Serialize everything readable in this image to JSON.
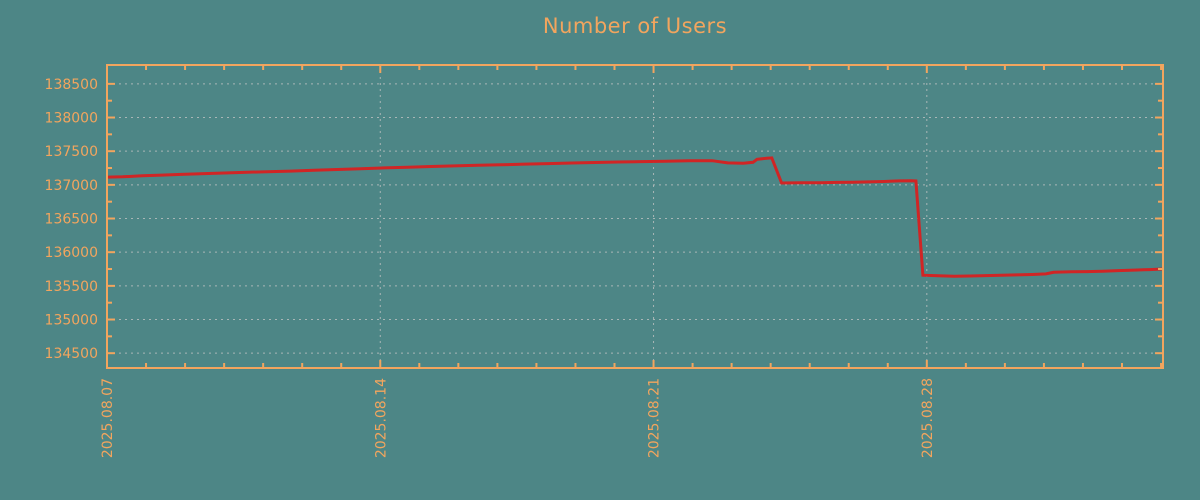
{
  "chart_data": {
    "type": "line",
    "title": "Number of Users",
    "legend": {
      "show": false
    },
    "grid": {
      "show": true,
      "style": "dashed"
    },
    "x_axis": {
      "kind": "date",
      "range_days": [
        0,
        27.05
      ],
      "minor_tick_step_days": 1,
      "major_ticks": [
        {
          "day": 0,
          "label": "2025.08.07"
        },
        {
          "day": 7,
          "label": "2025.08.14"
        },
        {
          "day": 14,
          "label": "2025.08.21"
        },
        {
          "day": 21,
          "label": "2025.08.28"
        }
      ]
    },
    "y_axis": {
      "range": [
        134280,
        138780
      ],
      "major_ticks": [
        134500,
        135000,
        135500,
        136000,
        136500,
        137000,
        137500,
        138000,
        138500
      ],
      "minor_ticks": [
        134750,
        135250,
        135750,
        136250,
        136750,
        137250,
        137750,
        138250
      ]
    },
    "series": [
      {
        "name": "Number of Users",
        "color": "#d02525",
        "points": [
          [
            0,
            137115
          ],
          [
            0.4,
            137120
          ],
          [
            0.9,
            137135
          ],
          [
            1.4,
            137145
          ],
          [
            1.9,
            137155
          ],
          [
            2.4,
            137165
          ],
          [
            2.9,
            137175
          ],
          [
            3.5,
            137185
          ],
          [
            4.1,
            137195
          ],
          [
            4.7,
            137205
          ],
          [
            5.3,
            137218
          ],
          [
            5.9,
            137228
          ],
          [
            6.5,
            137240
          ],
          [
            7.1,
            137252
          ],
          [
            7.7,
            137262
          ],
          [
            8.3,
            137272
          ],
          [
            8.9,
            137282
          ],
          [
            9.5,
            137290
          ],
          [
            10.1,
            137298
          ],
          [
            10.7,
            137308
          ],
          [
            11.3,
            137316
          ],
          [
            11.9,
            137324
          ],
          [
            12.5,
            137332
          ],
          [
            13.1,
            137340
          ],
          [
            13.7,
            137346
          ],
          [
            14.3,
            137352
          ],
          [
            14.9,
            137358
          ],
          [
            15.5,
            137358
          ],
          [
            15.9,
            137326
          ],
          [
            16.3,
            137320
          ],
          [
            16.55,
            137335
          ],
          [
            16.65,
            137380
          ],
          [
            16.9,
            137395
          ],
          [
            17.03,
            137400
          ],
          [
            17.28,
            137028
          ],
          [
            17.8,
            137030
          ],
          [
            18.3,
            137032
          ],
          [
            18.7,
            137036
          ],
          [
            19.1,
            137040
          ],
          [
            19.5,
            137044
          ],
          [
            19.9,
            137050
          ],
          [
            20.3,
            137058
          ],
          [
            20.6,
            137062
          ],
          [
            20.72,
            137058
          ],
          [
            20.9,
            135658
          ],
          [
            21.3,
            135650
          ],
          [
            21.7,
            135642
          ],
          [
            22.1,
            135646
          ],
          [
            22.5,
            135652
          ],
          [
            22.9,
            135658
          ],
          [
            23.3,
            135662
          ],
          [
            23.7,
            135668
          ],
          [
            24.05,
            135678
          ],
          [
            24.25,
            135702
          ],
          [
            24.7,
            135708
          ],
          [
            25.1,
            135712
          ],
          [
            25.5,
            135718
          ],
          [
            25.9,
            135726
          ],
          [
            26.3,
            135734
          ],
          [
            26.7,
            135742
          ],
          [
            27.05,
            135750
          ]
        ]
      }
    ],
    "colors": {
      "background": "#4d8686",
      "axis_and_text": "#f2a55e",
      "grid_line": "#b9bfbf",
      "series_line": "#d02525"
    }
  }
}
